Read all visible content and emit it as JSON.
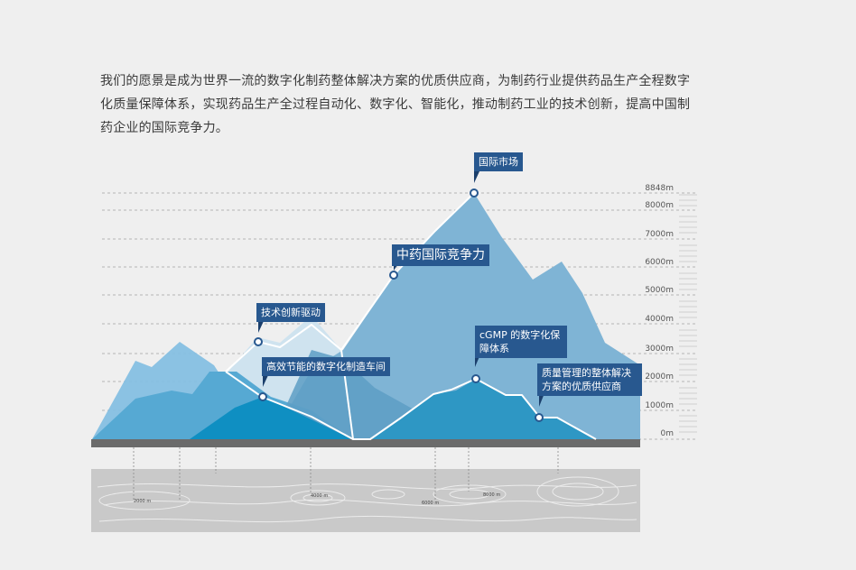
{
  "intro": {
    "text": "我们的愿景是成为世界一流的数字化制药整体解决方案的优质供应商，为制药行业提供药品生产全程数字化质量保障体系，实现药品生产全过程自动化、数字化、智能化，推动制药工业的技术创新，提高中国制药企业的国际竞争力。"
  },
  "altitude_scale": [
    "8848m",
    "8000m",
    "7000m",
    "6000m",
    "5000m",
    "4000m",
    "3000m",
    "2000m",
    "1000m",
    "0m"
  ],
  "milestones": [
    {
      "label": "国际市场"
    },
    {
      "label": "中药国际竞争力"
    },
    {
      "label": "技术创新驱动"
    },
    {
      "label": "高效节能的数字化制造车间"
    },
    {
      "label": "cGMP 的数字化保障体系"
    },
    {
      "label": "质量管理的整体解决方案的优质供应商"
    }
  ],
  "distance_scale": [
    "2000 m",
    "4000 m",
    "6000 m",
    "8000 m"
  ],
  "colors": {
    "callout": "#28588f",
    "mountain_back": "#7fb6d8",
    "mountain_main": "#6aa6cc",
    "mountain_front": "#1f96c6",
    "ground": "#6b6b6b",
    "map": "#c9c9c9",
    "path": "#ffffff"
  }
}
